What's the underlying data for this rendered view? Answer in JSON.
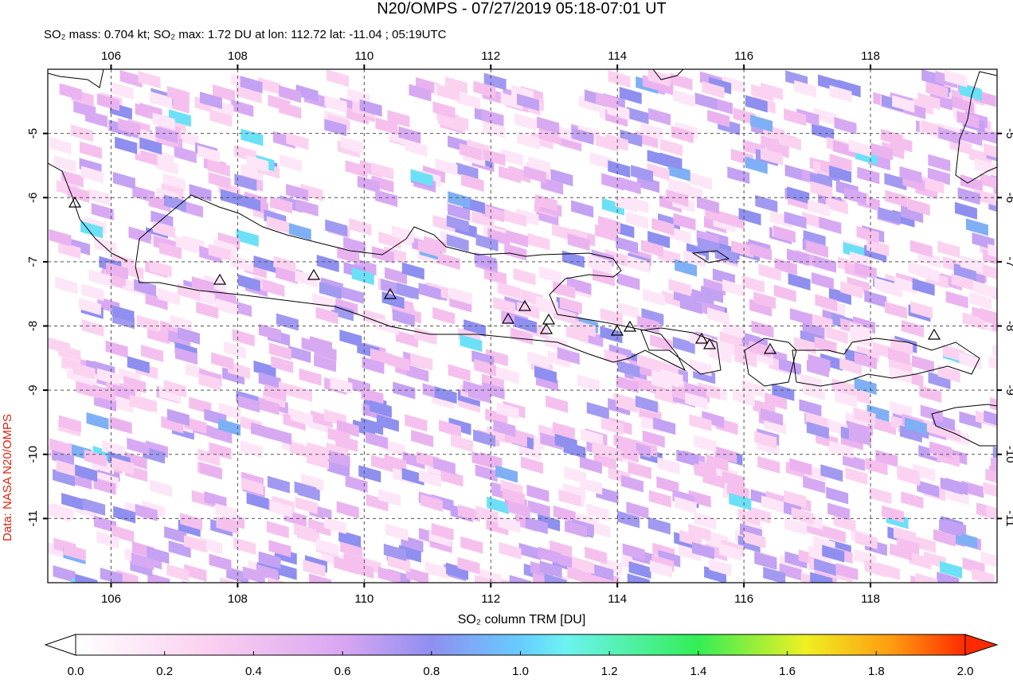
{
  "map": {
    "title": "N20/OMPS - 07/27/2019 05:18-07:01 UT",
    "subtitle": "SO₂ mass: 0.704 kt; SO₂ max: 1.72 DU at lon: 112.72 lat: -11.04 ; 05:19UTC",
    "credit": "Data: NASA N20/OMPS",
    "xlim": [
      105,
      120
    ],
    "ylim": [
      -12,
      -4
    ],
    "xticks": [
      106,
      108,
      110,
      112,
      114,
      116,
      118
    ],
    "yticks": [
      -5,
      -6,
      -7,
      -8,
      -9,
      -10,
      -11
    ],
    "grid": true,
    "colorbar": {
      "label": "SO₂ column TRM [DU]",
      "lim": [
        0,
        2
      ],
      "ticks": [
        {
          "value": 0,
          "label": "0.0"
        },
        0.2,
        0.4,
        0.6,
        0.8,
        {
          "value": 1,
          "label": "1.0"
        },
        1.2,
        1.4,
        1.6,
        1.8,
        {
          "value": 2,
          "label": "2.0"
        }
      ]
    }
  }
}
